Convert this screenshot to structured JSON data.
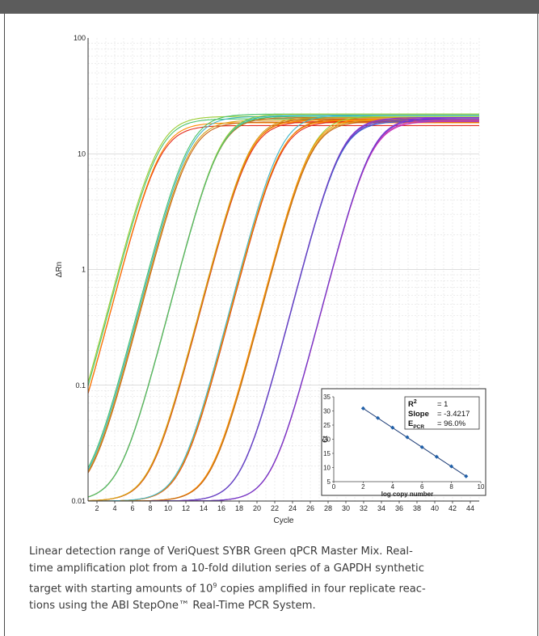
{
  "colors": {
    "header_bar": "#5c5c5c",
    "grid": "#d9d9d9",
    "caption_text": "#3a3a3a",
    "inset_points": "#1f5fa8",
    "series_palette": [
      "#e32b1d",
      "#ff8c00",
      "#c86414",
      "#9acd32",
      "#4cc36c",
      "#3eb7c9",
      "#d4a017",
      "#6a3fc7",
      "#8a2be2",
      "#d63aa9"
    ]
  },
  "chart_data": [
    {
      "type": "line",
      "xlabel": "Cycle",
      "ylabel": "ΔRn",
      "x_ticks": [
        2,
        4,
        6,
        8,
        10,
        12,
        14,
        16,
        18,
        20,
        22,
        24,
        26,
        28,
        30,
        32,
        34,
        36,
        38,
        40,
        42,
        44
      ],
      "y_ticks": [
        "0.01",
        "0.1",
        "1",
        "10",
        "100"
      ],
      "xlim": [
        1,
        45
      ],
      "ylim": [
        0.01,
        100
      ],
      "y_scale": "log",
      "grid": true,
      "curve_model": "sigmoid: y = 0.01 + plateau / (1 + exp(-(x - midpoint) / 1.45))",
      "series": [
        {
          "color": "#e32b1d",
          "midpoint": 8.9,
          "plateau": 17.5
        },
        {
          "color": "#ff8c00",
          "midpoint": 8.95,
          "plateau": 18.5
        },
        {
          "color": "#9acd32",
          "midpoint": 8.8,
          "plateau": 21.0
        },
        {
          "color": "#4cc36c",
          "midpoint": 8.85,
          "plateau": 20.0
        },
        {
          "color": "#d4a017",
          "midpoint": 12.3,
          "plateau": 19.5
        },
        {
          "color": "#c86414",
          "midpoint": 12.35,
          "plateau": 18.8
        },
        {
          "color": "#4cc36c",
          "midpoint": 12.25,
          "plateau": 22.0
        },
        {
          "color": "#3eb7c9",
          "midpoint": 12.3,
          "plateau": 21.0
        },
        {
          "color": "#3eb7c9",
          "midpoint": 15.7,
          "plateau": 21.5
        },
        {
          "color": "#9acd32",
          "midpoint": 15.75,
          "plateau": 22.0
        },
        {
          "color": "#c86414",
          "midpoint": 15.65,
          "plateau": 20.5
        },
        {
          "color": "#4cc36c",
          "midpoint": 15.7,
          "plateau": 21.0
        },
        {
          "color": "#e32b1d",
          "midpoint": 19.1,
          "plateau": 19.0
        },
        {
          "color": "#c86414",
          "midpoint": 19.15,
          "plateau": 20.0
        },
        {
          "color": "#ff8c00",
          "midpoint": 19.05,
          "plateau": 19.5
        },
        {
          "color": "#d4a017",
          "midpoint": 19.1,
          "plateau": 20.5
        },
        {
          "color": "#e32b1d",
          "midpoint": 22.55,
          "plateau": 19.0
        },
        {
          "color": "#c86414",
          "midpoint": 22.6,
          "plateau": 20.0
        },
        {
          "color": "#ff8c00",
          "midpoint": 22.5,
          "plateau": 19.5
        },
        {
          "color": "#3eb7c9",
          "midpoint": 22.55,
          "plateau": 21.5
        },
        {
          "color": "#d4a017",
          "midpoint": 25.95,
          "plateau": 19.5
        },
        {
          "color": "#9acd32",
          "midpoint": 26.0,
          "plateau": 21.0
        },
        {
          "color": "#ff8c00",
          "midpoint": 25.9,
          "plateau": 20.0
        },
        {
          "color": "#c86414",
          "midpoint": 25.95,
          "plateau": 19.0
        },
        {
          "color": "#6a3fc7",
          "midpoint": 29.35,
          "plateau": 19.5
        },
        {
          "color": "#8a2be2",
          "midpoint": 29.4,
          "plateau": 20.5
        },
        {
          "color": "#3b5fd0",
          "midpoint": 29.3,
          "plateau": 19.0
        },
        {
          "color": "#7040c0",
          "midpoint": 29.35,
          "plateau": 20.0
        },
        {
          "color": "#d63aa9",
          "midpoint": 32.75,
          "plateau": 19.5
        },
        {
          "color": "#8a2be2",
          "midpoint": 32.8,
          "plateau": 20.5
        },
        {
          "color": "#c030c0",
          "midpoint": 32.7,
          "plateau": 19.0
        },
        {
          "color": "#6a3fc7",
          "midpoint": 32.75,
          "plateau": 20.0
        }
      ]
    },
    {
      "type": "scatter",
      "xlabel": "log copy number",
      "ylabel": "Ct",
      "x_ticks": [
        0,
        2,
        4,
        6,
        8,
        10
      ],
      "y_ticks": [
        5,
        10,
        15,
        20,
        25,
        30,
        35
      ],
      "xlim": [
        0,
        10
      ],
      "ylim": [
        5,
        35
      ],
      "grid": false,
      "x": [
        2,
        3,
        4,
        5,
        6,
        7,
        8,
        9
      ],
      "y": [
        30.9,
        27.5,
        24.1,
        20.7,
        17.2,
        13.8,
        10.4,
        6.9
      ],
      "trendline": true,
      "stats": {
        "r2_label": "R",
        "r2_sup": "2",
        "r2_value": "= 1",
        "slope_label": "Slope",
        "slope_value": "= -3.4217",
        "epcr_label": "E",
        "epcr_sub": "PCR",
        "epcr_value": "= 96.0%"
      }
    }
  ],
  "caption": {
    "line1": "Linear detection range of VeriQuest SYBR Green qPCR Master Mix. Real-",
    "line2": "time amplification plot from a 10-fold dilution series of a GAPDH synthetic",
    "line3a": "target with starting amounts of 10",
    "line3sup": "9",
    "line3b": " copies amplified in four replicate reac-",
    "line4": "tions using the ABI StepOne™ Real-Time PCR System."
  }
}
